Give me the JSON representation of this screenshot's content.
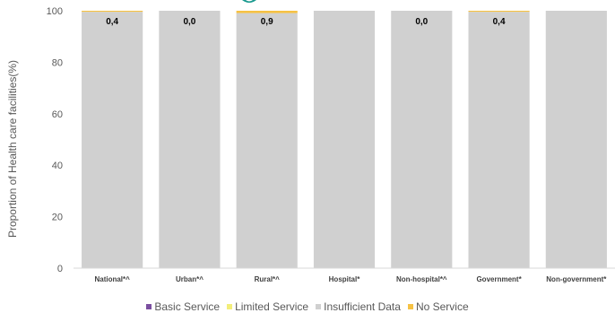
{
  "chart_data": {
    "type": "bar",
    "stacked": true,
    "ylabel": "Proportion of Health care facilities(%)",
    "xlabel": "",
    "ylim": [
      0,
      100
    ],
    "yticks": [
      0,
      20,
      40,
      60,
      80,
      100
    ],
    "categories": [
      "National*^",
      "Urban*^",
      "Rural*^",
      "Hospital*",
      "Non-hospital*^",
      "Government*",
      "Non-government*"
    ],
    "series": [
      {
        "name": "Basic Service",
        "color": "#7B4FA0",
        "values": [
          0,
          0,
          0,
          0,
          0,
          0,
          0
        ]
      },
      {
        "name": "Limited Service",
        "color": "#F3EE7A",
        "values": [
          0,
          0,
          0,
          0,
          0,
          0,
          0
        ]
      },
      {
        "name": "Insufficient Data",
        "color": "#D0D0D0",
        "values": [
          99.6,
          100,
          99.1,
          100,
          100,
          99.6,
          100
        ]
      },
      {
        "name": "No Service",
        "color": "#F6C244",
        "values": [
          0.4,
          0.0,
          0.9,
          0,
          0.0,
          0.4,
          0
        ]
      }
    ],
    "data_labels": [
      "0,4",
      "0,0",
      "0,9",
      "",
      "0,0",
      "0,4",
      ""
    ],
    "legend_position": "bottom",
    "grid": false
  }
}
